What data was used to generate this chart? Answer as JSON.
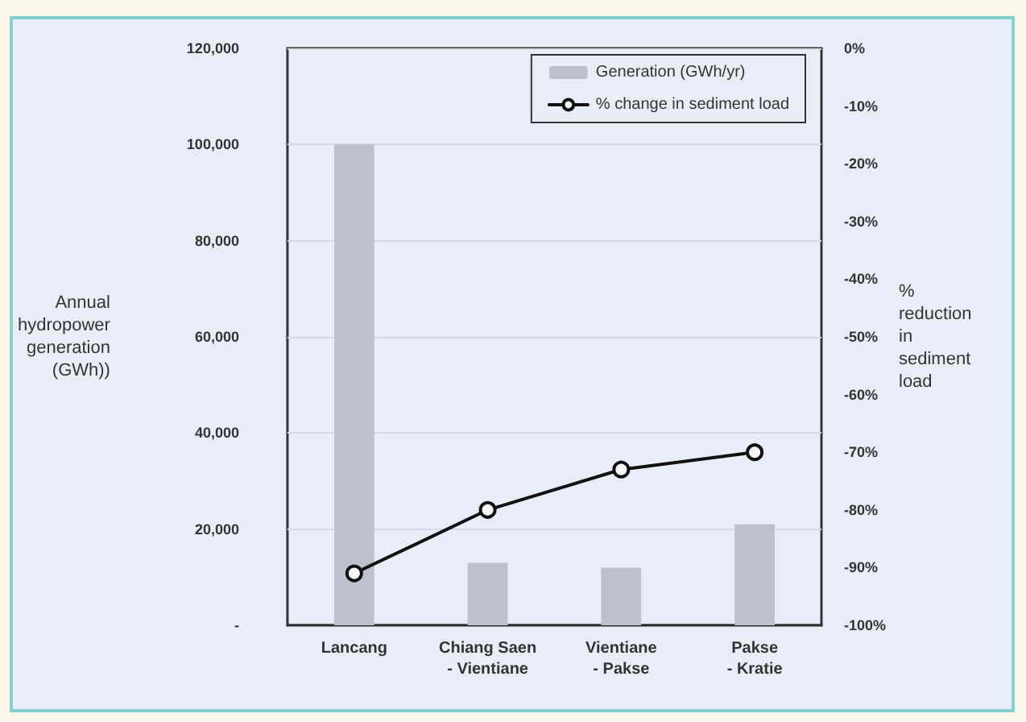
{
  "chart_data": {
    "type": "bar",
    "categories": [
      "Lancang",
      "Chiang Saen - Vientiane",
      "Vientiane - Pakse",
      "Pakse - Kratie"
    ],
    "series": [
      {
        "name": "Generation (GWh/yr)",
        "color": "#bcc1cd",
        "values": [
          100000,
          13000,
          12000,
          21000
        ]
      },
      {
        "name": "% change in sediment load",
        "type": "line",
        "axis": "y2",
        "color": "#111111",
        "values": [
          -91,
          -80,
          -73,
          -70
        ]
      }
    ],
    "ylabel": "Annual hydropower generation (GWh))",
    "y2label": "% reduction in sediment load",
    "ylim": [
      0,
      120000
    ],
    "yticks": [
      {
        "value": 0,
        "label": "-"
      },
      {
        "value": 20000,
        "label": "20,000"
      },
      {
        "value": 40000,
        "label": "40,000"
      },
      {
        "value": 60000,
        "label": "60,000"
      },
      {
        "value": 80000,
        "label": "80,000"
      },
      {
        "value": 100000,
        "label": "100,000"
      },
      {
        "value": 120000,
        "label": "120,000"
      }
    ],
    "y2lim": [
      -100,
      0
    ],
    "y2ticks": [
      {
        "value": -100,
        "label": "-100%"
      },
      {
        "value": -90,
        "label": "-90%"
      },
      {
        "value": -80,
        "label": "-80%"
      },
      {
        "value": -70,
        "label": "-70%"
      },
      {
        "value": -60,
        "label": "-60%"
      },
      {
        "value": -50,
        "label": "-50%"
      },
      {
        "value": -40,
        "label": "-40%"
      },
      {
        "value": -30,
        "label": "-30%"
      },
      {
        "value": -20,
        "label": "-20%"
      },
      {
        "value": -10,
        "label": "-10%"
      },
      {
        "value": 0,
        "label": "0%"
      }
    ],
    "grid": "y",
    "legend": "top right",
    "marker": "circle",
    "line_style": "solid"
  }
}
